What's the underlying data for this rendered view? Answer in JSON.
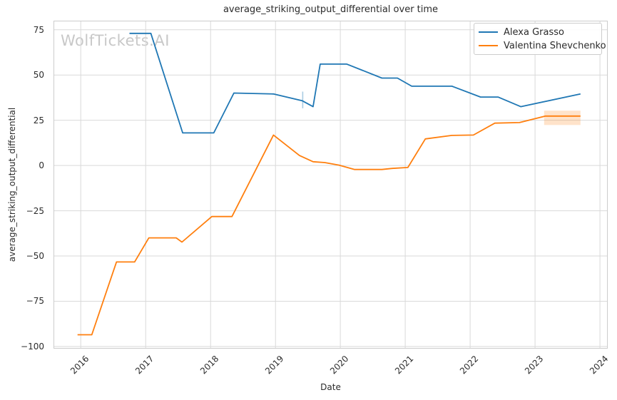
{
  "chart_data": {
    "type": "line",
    "title": "average_striking_output_differential over time",
    "xlabel": "Date",
    "ylabel": "average_striking_output_differential",
    "watermark": "WolfTickets.AI",
    "xlim": [
      2015.58,
      2024.12
    ],
    "ylim": [
      -101.2,
      80
    ],
    "grid": true,
    "x_ticks": [
      {
        "value": 2016,
        "label": "2016"
      },
      {
        "value": 2017,
        "label": "2017"
      },
      {
        "value": 2018,
        "label": "2018"
      },
      {
        "value": 2019,
        "label": "2019"
      },
      {
        "value": 2020,
        "label": "2020"
      },
      {
        "value": 2021,
        "label": "2021"
      },
      {
        "value": 2022,
        "label": "2022"
      },
      {
        "value": 2023,
        "label": "2023"
      },
      {
        "value": 2024,
        "label": "2024"
      }
    ],
    "y_ticks": [
      {
        "value": 75,
        "label": "75"
      },
      {
        "value": 50,
        "label": "50"
      },
      {
        "value": 25,
        "label": "25"
      },
      {
        "value": 0,
        "label": "0"
      },
      {
        "value": -25,
        "label": "−25"
      },
      {
        "value": -50,
        "label": "−50"
      },
      {
        "value": -75,
        "label": "−75"
      },
      {
        "value": -100,
        "label": "−100"
      }
    ],
    "legend": {
      "position": "upper right"
    },
    "series": [
      {
        "name": "Alexa Grasso",
        "color": "#1f77b4",
        "points": [
          [
            2016.75,
            73
          ],
          [
            2017.08,
            73
          ],
          [
            2017.57,
            18
          ],
          [
            2018.05,
            18
          ],
          [
            2018.36,
            40
          ],
          [
            2018.97,
            39.5
          ],
          [
            2019.41,
            35.8
          ],
          [
            2019.58,
            32.5
          ],
          [
            2019.69,
            56
          ],
          [
            2020.1,
            56
          ],
          [
            2020.64,
            48.3
          ],
          [
            2020.88,
            48.3
          ],
          [
            2021.1,
            43.8
          ],
          [
            2021.72,
            43.8
          ],
          [
            2022.16,
            37.8
          ],
          [
            2022.43,
            37.8
          ],
          [
            2022.78,
            32.5
          ],
          [
            2023.7,
            39.5
          ]
        ]
      },
      {
        "name": "Valentina Shevchenko",
        "color": "#ff7f0e",
        "points": [
          [
            2015.95,
            -93.5
          ],
          [
            2016.17,
            -93.5
          ],
          [
            2016.55,
            -53.3
          ],
          [
            2016.83,
            -53.3
          ],
          [
            2017.05,
            -40
          ],
          [
            2017.47,
            -40
          ],
          [
            2017.56,
            -42.3
          ],
          [
            2018.02,
            -28.2
          ],
          [
            2018.33,
            -28.2
          ],
          [
            2018.97,
            16.8
          ],
          [
            2019.37,
            5.5
          ],
          [
            2019.58,
            2.1
          ],
          [
            2019.76,
            1.6
          ],
          [
            2019.98,
            0.2
          ],
          [
            2020.22,
            -2.2
          ],
          [
            2020.64,
            -2.2
          ],
          [
            2020.8,
            -1.6
          ],
          [
            2021.04,
            -1.1
          ],
          [
            2021.31,
            14.7
          ],
          [
            2021.72,
            16.6
          ],
          [
            2022.05,
            16.8
          ],
          [
            2022.38,
            23.4
          ],
          [
            2022.76,
            23.7
          ],
          [
            2023.16,
            27.3
          ],
          [
            2023.7,
            27.3
          ]
        ]
      }
    ],
    "annotations": {
      "error_band": {
        "series": "Valentina Shevchenko",
        "color": "#ff7f0e",
        "opacity": 0.22,
        "x_start": 2023.14,
        "x_end": 2023.7,
        "y_top": 30.3,
        "y_bottom": 22.4
      },
      "error_bar": {
        "series": "Alexa Grasso",
        "color": "#a9cce3",
        "x": 2019.42,
        "y_top": 40.8,
        "y_bottom": 31.6
      }
    }
  },
  "style": {
    "background": "#ffffff",
    "grid_color": "#d9d9d9",
    "spine_color": "#cccccc",
    "text_color": "#2b2b2b",
    "watermark_color": "#c8c8c8",
    "line_width": 1.8
  }
}
